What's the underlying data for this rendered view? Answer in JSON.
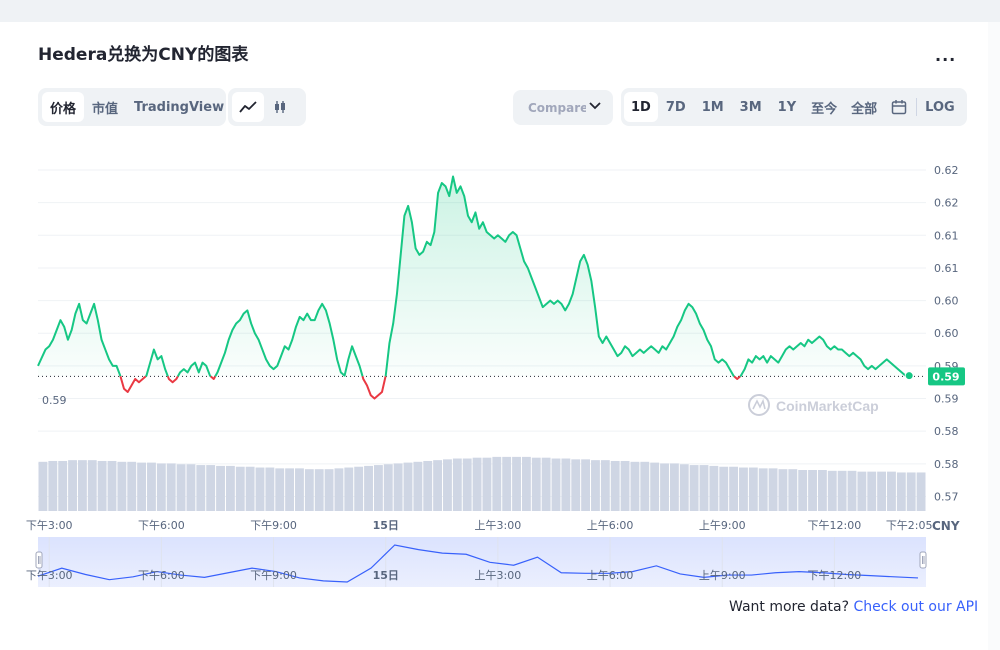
{
  "header": {
    "title": "Hedera兑换为CNY的图表",
    "more_label": "..."
  },
  "view_tabs": [
    {
      "label": "价格",
      "active": true
    },
    {
      "label": "市值",
      "active": false
    },
    {
      "label": "TradingView",
      "active": false
    }
  ],
  "chart_tools": [
    {
      "icon": "line-chart-icon",
      "active": true
    },
    {
      "icon": "candlestick-icon",
      "active": false
    }
  ],
  "compare": {
    "label": "Compare w",
    "icon": "chevron-down-icon"
  },
  "ranges": [
    {
      "label": "1D",
      "active": true
    },
    {
      "label": "7D",
      "active": false
    },
    {
      "label": "1M",
      "active": false
    },
    {
      "label": "3M",
      "active": false
    },
    {
      "label": "1Y",
      "active": false
    },
    {
      "label": "至今",
      "active": false
    },
    {
      "label": "全部",
      "active": false
    }
  ],
  "calendar_icon": "calendar-icon",
  "log_label": "LOG",
  "footer": {
    "prefix": "Want more data?",
    "link": "Check out our API"
  },
  "watermark": "CoinMarketCap",
  "colors": {
    "up": "#16c784",
    "down": "#ea3943",
    "volume": "#cfd6e4",
    "navigator": "#3861fb",
    "badge": "#16c784"
  },
  "chart_data": {
    "type": "area",
    "currency_label": "CNY",
    "reference_price": 0.5904,
    "reference_label": "0.59",
    "current_label": "0.59",
    "current_value": 0.5904,
    "ylim": [
      0.571,
      0.622
    ],
    "y_ticks": [
      {
        "value": 0.622,
        "label": "0.62"
      },
      {
        "value": 0.617,
        "label": "0.62"
      },
      {
        "value": 0.612,
        "label": "0.61"
      },
      {
        "value": 0.607,
        "label": "0.61"
      },
      {
        "value": 0.602,
        "label": "0.60"
      },
      {
        "value": 0.597,
        "label": "0.60"
      },
      {
        "value": 0.592,
        "label": "0.59"
      },
      {
        "value": 0.587,
        "label": "0.59"
      },
      {
        "value": 0.582,
        "label": "0.58"
      },
      {
        "value": 0.577,
        "label": "0.58"
      },
      {
        "value": 0.572,
        "label": "0.57"
      }
    ],
    "x_ticks": [
      {
        "t": 0.5,
        "label": "下午3:00"
      },
      {
        "t": 3.5,
        "label": "下午6:00"
      },
      {
        "t": 6.5,
        "label": "下午9:00"
      },
      {
        "t": 9.5,
        "label": "15日"
      },
      {
        "t": 12.5,
        "label": "上午3:00"
      },
      {
        "t": 15.5,
        "label": "上午6:00"
      },
      {
        "t": 18.5,
        "label": "上午9:00"
      },
      {
        "t": 21.5,
        "label": "下午12:00"
      },
      {
        "t": 23.5,
        "label": "下午2:05"
      }
    ],
    "x_range_hours": [
      0.2,
      23.95
    ],
    "price_series": [
      [
        0.2,
        0.592
      ],
      [
        0.4,
        0.5945
      ],
      [
        0.5,
        0.595
      ],
      [
        0.6,
        0.596
      ],
      [
        0.7,
        0.5975
      ],
      [
        0.8,
        0.599
      ],
      [
        0.9,
        0.598
      ],
      [
        1.0,
        0.596
      ],
      [
        1.1,
        0.5975
      ],
      [
        1.2,
        0.6
      ],
      [
        1.3,
        0.6015
      ],
      [
        1.4,
        0.599
      ],
      [
        1.5,
        0.5985
      ],
      [
        1.6,
        0.6
      ],
      [
        1.7,
        0.6015
      ],
      [
        1.8,
        0.599
      ],
      [
        1.9,
        0.596
      ],
      [
        2.0,
        0.5945
      ],
      [
        2.1,
        0.593
      ],
      [
        2.2,
        0.592
      ],
      [
        2.3,
        0.592
      ],
      [
        2.4,
        0.5905
      ],
      [
        2.5,
        0.5885
      ],
      [
        2.6,
        0.588
      ],
      [
        2.7,
        0.589
      ],
      [
        2.8,
        0.59
      ],
      [
        2.9,
        0.5895
      ],
      [
        3.0,
        0.59
      ],
      [
        3.1,
        0.5905
      ],
      [
        3.2,
        0.5925
      ],
      [
        3.3,
        0.5945
      ],
      [
        3.4,
        0.593
      ],
      [
        3.5,
        0.5935
      ],
      [
        3.6,
        0.5915
      ],
      [
        3.7,
        0.59
      ],
      [
        3.8,
        0.5895
      ],
      [
        3.9,
        0.59
      ],
      [
        4.0,
        0.591
      ],
      [
        4.1,
        0.5915
      ],
      [
        4.2,
        0.591
      ],
      [
        4.3,
        0.592
      ],
      [
        4.4,
        0.5925
      ],
      [
        4.5,
        0.591
      ],
      [
        4.6,
        0.5925
      ],
      [
        4.7,
        0.592
      ],
      [
        4.8,
        0.5905
      ],
      [
        4.9,
        0.59
      ],
      [
        5.0,
        0.591
      ],
      [
        5.1,
        0.5925
      ],
      [
        5.2,
        0.594
      ],
      [
        5.3,
        0.596
      ],
      [
        5.4,
        0.5975
      ],
      [
        5.5,
        0.5985
      ],
      [
        5.6,
        0.599
      ],
      [
        5.7,
        0.6
      ],
      [
        5.8,
        0.6005
      ],
      [
        5.9,
        0.5985
      ],
      [
        6.0,
        0.597
      ],
      [
        6.1,
        0.596
      ],
      [
        6.2,
        0.5945
      ],
      [
        6.3,
        0.593
      ],
      [
        6.4,
        0.592
      ],
      [
        6.5,
        0.5915
      ],
      [
        6.6,
        0.592
      ],
      [
        6.7,
        0.5935
      ],
      [
        6.8,
        0.595
      ],
      [
        6.9,
        0.5945
      ],
      [
        7.0,
        0.596
      ],
      [
        7.1,
        0.598
      ],
      [
        7.2,
        0.5995
      ],
      [
        7.3,
        0.599
      ],
      [
        7.4,
        0.6
      ],
      [
        7.5,
        0.599
      ],
      [
        7.6,
        0.599
      ],
      [
        7.7,
        0.6005
      ],
      [
        7.8,
        0.6015
      ],
      [
        7.9,
        0.6005
      ],
      [
        8.0,
        0.5985
      ],
      [
        8.1,
        0.596
      ],
      [
        8.2,
        0.593
      ],
      [
        8.3,
        0.591
      ],
      [
        8.4,
        0.5905
      ],
      [
        8.5,
        0.593
      ],
      [
        8.6,
        0.595
      ],
      [
        8.7,
        0.5935
      ],
      [
        8.8,
        0.592
      ],
      [
        8.9,
        0.59
      ],
      [
        9.0,
        0.589
      ],
      [
        9.1,
        0.5875
      ],
      [
        9.2,
        0.587
      ],
      [
        9.3,
        0.5875
      ],
      [
        9.4,
        0.588
      ],
      [
        9.5,
        0.5905
      ],
      [
        9.6,
        0.5955
      ],
      [
        9.7,
        0.5985
      ],
      [
        9.8,
        0.603
      ],
      [
        9.9,
        0.609
      ],
      [
        10.0,
        0.615
      ],
      [
        10.1,
        0.6165
      ],
      [
        10.2,
        0.614
      ],
      [
        10.3,
        0.61
      ],
      [
        10.4,
        0.609
      ],
      [
        10.5,
        0.6095
      ],
      [
        10.6,
        0.611
      ],
      [
        10.7,
        0.6105
      ],
      [
        10.8,
        0.6125
      ],
      [
        10.9,
        0.6185
      ],
      [
        11.0,
        0.62
      ],
      [
        11.1,
        0.6195
      ],
      [
        11.2,
        0.618
      ],
      [
        11.3,
        0.621
      ],
      [
        11.4,
        0.6185
      ],
      [
        11.5,
        0.6195
      ],
      [
        11.6,
        0.618
      ],
      [
        11.7,
        0.615
      ],
      [
        11.8,
        0.614
      ],
      [
        11.9,
        0.6155
      ],
      [
        12.0,
        0.613
      ],
      [
        12.1,
        0.614
      ],
      [
        12.2,
        0.6125
      ],
      [
        12.3,
        0.612
      ],
      [
        12.4,
        0.6115
      ],
      [
        12.5,
        0.612
      ],
      [
        12.6,
        0.6115
      ],
      [
        12.7,
        0.611
      ],
      [
        12.8,
        0.612
      ],
      [
        12.9,
        0.6125
      ],
      [
        13.0,
        0.612
      ],
      [
        13.1,
        0.61
      ],
      [
        13.2,
        0.608
      ],
      [
        13.3,
        0.607
      ],
      [
        13.4,
        0.6055
      ],
      [
        13.5,
        0.604
      ],
      [
        13.6,
        0.6025
      ],
      [
        13.7,
        0.601
      ],
      [
        13.8,
        0.6015
      ],
      [
        13.9,
        0.602
      ],
      [
        14.0,
        0.6015
      ],
      [
        14.1,
        0.602
      ],
      [
        14.2,
        0.6015
      ],
      [
        14.3,
        0.6005
      ],
      [
        14.4,
        0.6015
      ],
      [
        14.5,
        0.603
      ],
      [
        14.6,
        0.6055
      ],
      [
        14.7,
        0.608
      ],
      [
        14.8,
        0.609
      ],
      [
        14.9,
        0.6075
      ],
      [
        15.0,
        0.605
      ],
      [
        15.1,
        0.601
      ],
      [
        15.2,
        0.5965
      ],
      [
        15.3,
        0.5955
      ],
      [
        15.4,
        0.5965
      ],
      [
        15.5,
        0.5955
      ],
      [
        15.6,
        0.5945
      ],
      [
        15.7,
        0.5935
      ],
      [
        15.8,
        0.594
      ],
      [
        15.9,
        0.595
      ],
      [
        16.0,
        0.5945
      ],
      [
        16.1,
        0.5935
      ],
      [
        16.2,
        0.594
      ],
      [
        16.3,
        0.5945
      ],
      [
        16.4,
        0.594
      ],
      [
        16.5,
        0.5945
      ],
      [
        16.6,
        0.595
      ],
      [
        16.7,
        0.5945
      ],
      [
        16.8,
        0.594
      ],
      [
        16.9,
        0.595
      ],
      [
        17.0,
        0.5945
      ],
      [
        17.1,
        0.5955
      ],
      [
        17.2,
        0.5965
      ],
      [
        17.3,
        0.598
      ],
      [
        17.4,
        0.599
      ],
      [
        17.5,
        0.6005
      ],
      [
        17.6,
        0.6015
      ],
      [
        17.7,
        0.601
      ],
      [
        17.8,
        0.6
      ],
      [
        17.9,
        0.5985
      ],
      [
        18.0,
        0.5975
      ],
      [
        18.1,
        0.596
      ],
      [
        18.2,
        0.595
      ],
      [
        18.3,
        0.593
      ],
      [
        18.4,
        0.5925
      ],
      [
        18.5,
        0.593
      ],
      [
        18.6,
        0.5925
      ],
      [
        18.7,
        0.5915
      ],
      [
        18.8,
        0.5905
      ],
      [
        18.9,
        0.59
      ],
      [
        19.0,
        0.5905
      ],
      [
        19.1,
        0.5915
      ],
      [
        19.2,
        0.593
      ],
      [
        19.3,
        0.5925
      ],
      [
        19.4,
        0.5935
      ],
      [
        19.5,
        0.593
      ],
      [
        19.6,
        0.5935
      ],
      [
        19.7,
        0.5925
      ],
      [
        19.8,
        0.5935
      ],
      [
        19.9,
        0.593
      ],
      [
        20.0,
        0.5925
      ],
      [
        20.1,
        0.5935
      ],
      [
        20.2,
        0.5945
      ],
      [
        20.3,
        0.595
      ],
      [
        20.4,
        0.5945
      ],
      [
        20.5,
        0.595
      ],
      [
        20.6,
        0.5955
      ],
      [
        20.7,
        0.595
      ],
      [
        20.8,
        0.596
      ],
      [
        20.9,
        0.5955
      ],
      [
        21.0,
        0.596
      ],
      [
        21.1,
        0.5965
      ],
      [
        21.2,
        0.596
      ],
      [
        21.3,
        0.595
      ],
      [
        21.4,
        0.5945
      ],
      [
        21.5,
        0.595
      ],
      [
        21.6,
        0.5945
      ],
      [
        21.7,
        0.5945
      ],
      [
        21.8,
        0.594
      ],
      [
        21.9,
        0.5935
      ],
      [
        22.0,
        0.594
      ],
      [
        22.1,
        0.5935
      ],
      [
        22.2,
        0.593
      ],
      [
        22.3,
        0.592
      ],
      [
        22.4,
        0.5915
      ],
      [
        22.5,
        0.592
      ],
      [
        22.6,
        0.5915
      ],
      [
        22.7,
        0.592
      ],
      [
        22.8,
        0.5925
      ],
      [
        22.9,
        0.593
      ],
      [
        23.0,
        0.5925
      ],
      [
        23.1,
        0.592
      ],
      [
        23.2,
        0.5915
      ],
      [
        23.3,
        0.591
      ],
      [
        23.4,
        0.5905
      ],
      [
        23.5,
        0.5905
      ]
    ],
    "volume_series": [
      0.6,
      0.61,
      0.61,
      0.62,
      0.62,
      0.62,
      0.61,
      0.61,
      0.6,
      0.6,
      0.59,
      0.59,
      0.58,
      0.58,
      0.57,
      0.57,
      0.56,
      0.56,
      0.55,
      0.55,
      0.54,
      0.54,
      0.53,
      0.53,
      0.52,
      0.52,
      0.52,
      0.51,
      0.51,
      0.51,
      0.52,
      0.53,
      0.54,
      0.55,
      0.56,
      0.57,
      0.58,
      0.59,
      0.6,
      0.61,
      0.62,
      0.63,
      0.64,
      0.64,
      0.65,
      0.65,
      0.66,
      0.66,
      0.66,
      0.66,
      0.65,
      0.65,
      0.64,
      0.64,
      0.63,
      0.63,
      0.62,
      0.62,
      0.61,
      0.61,
      0.6,
      0.6,
      0.59,
      0.58,
      0.58,
      0.57,
      0.56,
      0.56,
      0.55,
      0.54,
      0.54,
      0.53,
      0.53,
      0.52,
      0.52,
      0.51,
      0.51,
      0.5,
      0.5,
      0.5,
      0.49,
      0.49,
      0.49,
      0.48,
      0.48,
      0.48,
      0.48,
      0.47,
      0.47,
      0.47
    ],
    "navigator_series": [
      0.592,
      0.599,
      0.5935,
      0.589,
      0.5915,
      0.596,
      0.593,
      0.591,
      0.595,
      0.599,
      0.596,
      0.5905,
      0.588,
      0.587,
      0.599,
      0.619,
      0.615,
      0.612,
      0.611,
      0.604,
      0.6015,
      0.6085,
      0.595,
      0.5945,
      0.5945,
      0.596,
      0.601,
      0.594,
      0.591,
      0.593,
      0.593,
      0.595,
      0.596,
      0.595,
      0.5935,
      0.5925,
      0.5915,
      0.5905
    ]
  }
}
